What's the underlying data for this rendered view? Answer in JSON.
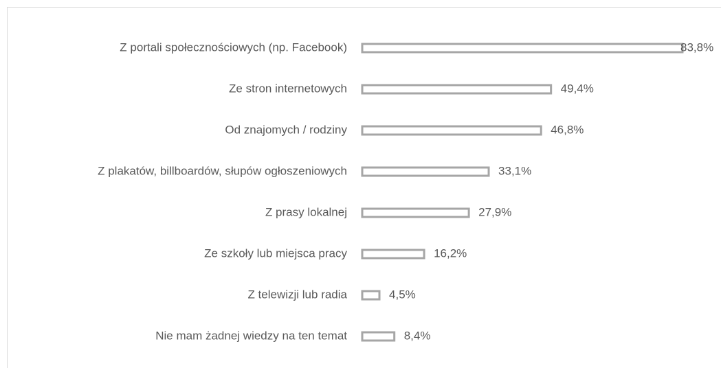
{
  "chart_data": {
    "type": "bar",
    "orientation": "horizontal",
    "categories": [
      "Z portali społecznościowych (np. Facebook)",
      "Ze stron internetowych",
      "Od znajomych / rodziny",
      "Z plakatów, billboardów, słupów ogłoszeniowych",
      "Z prasy lokalnej",
      "Ze szkoły lub miejsca pracy",
      "Z telewizji lub radia",
      "Nie mam żadnej wiedzy na ten temat"
    ],
    "values": [
      83.8,
      49.4,
      46.8,
      33.1,
      27.9,
      16.2,
      4.5,
      8.4
    ],
    "value_labels": [
      "83,8%",
      "49,4%",
      "46,8%",
      "33,1%",
      "27,9%",
      "16,2%",
      "4,5%",
      "8,4%"
    ],
    "color": "#a6a6a6"
  }
}
